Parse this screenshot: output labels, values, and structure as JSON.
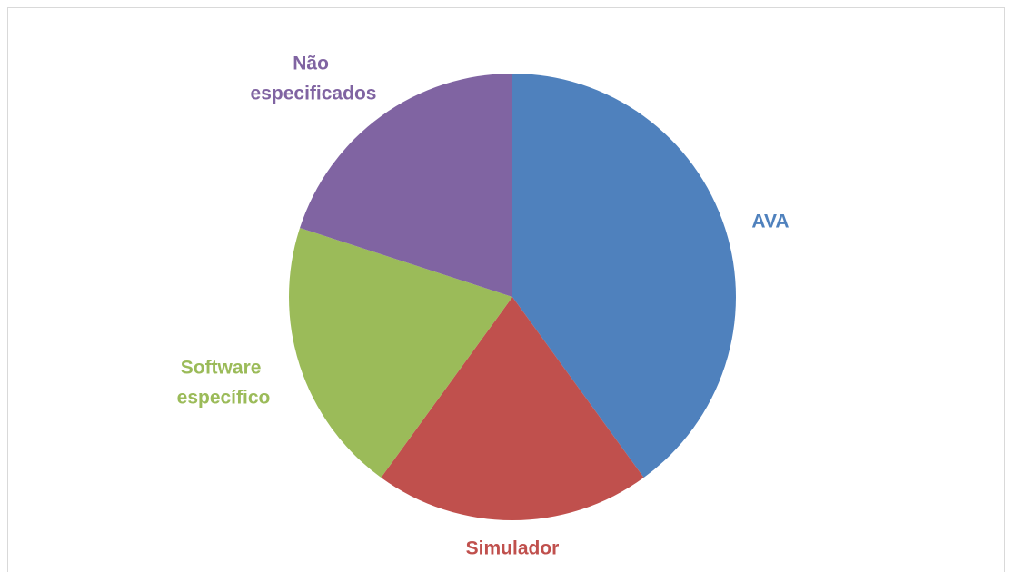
{
  "chart_data": {
    "type": "pie",
    "categories": [
      "AVA",
      "Simulador",
      "Software específico",
      "Não especificados"
    ],
    "values": [
      40,
      20,
      20,
      20
    ],
    "colors": [
      "#4f81bd",
      "#c0504d",
      "#9bbb59",
      "#8064a2"
    ]
  }
}
